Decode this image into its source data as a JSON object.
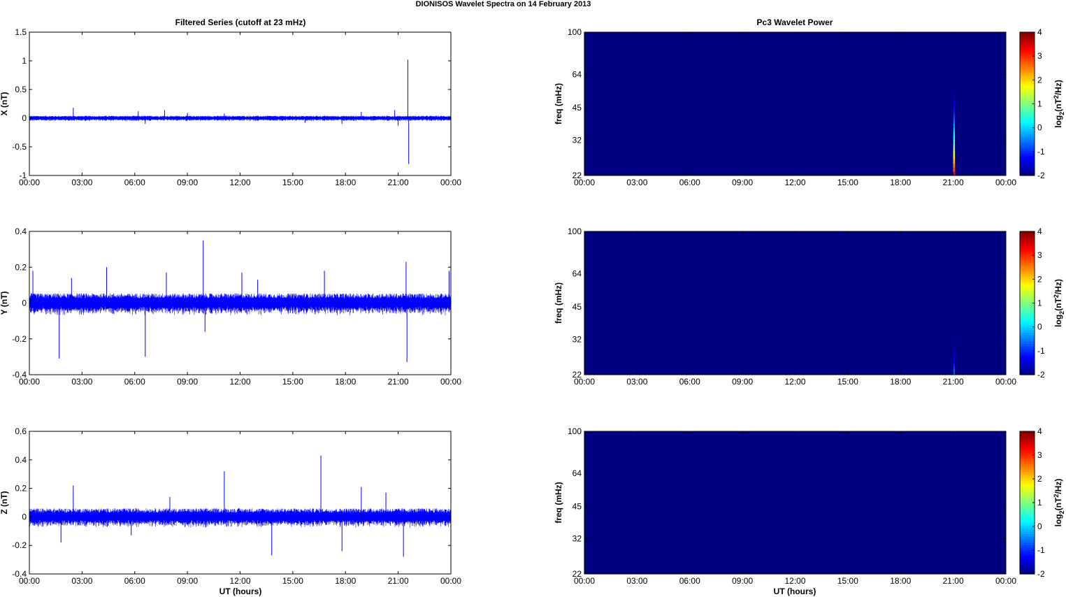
{
  "figure": {
    "title": "DIONISOS Wavelet Spectra on 14 February  2013",
    "left_title": "Filtered Series (cutoff at 23 mHz)",
    "right_title": "Pc3 Wavelet Power",
    "xlabel": "UT (hours)"
  },
  "colormap": "jet",
  "chart_data": [
    {
      "type": "line",
      "panel": "X",
      "ylabel": "X (nT)",
      "ylim": [
        -1,
        1.5
      ],
      "yticks": [
        "-1",
        "-0.5",
        "0",
        "0.5",
        "1",
        "1.5"
      ],
      "xticks": [
        "00:00",
        "03:00",
        "06:00",
        "09:00",
        "12:00",
        "15:00",
        "18:00",
        "21:00",
        "00:00"
      ],
      "xlim_hours": [
        0,
        24
      ],
      "line_color": "#0000ff",
      "noise_band": 0.035,
      "spikes": [
        {
          "t": 2.5,
          "v": 0.18
        },
        {
          "t": 6.2,
          "v": 0.12
        },
        {
          "t": 6.6,
          "v": -0.1
        },
        {
          "t": 7.7,
          "v": 0.14
        },
        {
          "t": 9.0,
          "v": 0.09
        },
        {
          "t": 11.1,
          "v": 0.08
        },
        {
          "t": 15.7,
          "v": -0.08
        },
        {
          "t": 17.8,
          "v": -0.1
        },
        {
          "t": 18.9,
          "v": 0.11
        },
        {
          "t": 20.8,
          "v": 0.14
        },
        {
          "t": 21.0,
          "v": -0.13
        },
        {
          "t": 21.55,
          "v": 1.02
        },
        {
          "t": 21.6,
          "v": -0.8
        }
      ]
    },
    {
      "type": "line",
      "panel": "Y",
      "ylabel": "Y (nT)",
      "ylim": [
        -0.4,
        0.4
      ],
      "yticks": [
        "-0.4",
        "-0.2",
        "0",
        "0.2",
        "0.4"
      ],
      "xticks": [
        "00:00",
        "03:00",
        "06:00",
        "09:00",
        "12:00",
        "15:00",
        "18:00",
        "21:00",
        "00:00"
      ],
      "xlim_hours": [
        0,
        24
      ],
      "line_color": "#0000ff",
      "noise_band": 0.045,
      "spikes": [
        {
          "t": 0.2,
          "v": 0.18
        },
        {
          "t": 1.7,
          "v": -0.31
        },
        {
          "t": 2.4,
          "v": 0.14
        },
        {
          "t": 4.4,
          "v": 0.2
        },
        {
          "t": 6.6,
          "v": -0.3
        },
        {
          "t": 7.8,
          "v": 0.17
        },
        {
          "t": 9.9,
          "v": 0.35
        },
        {
          "t": 10.0,
          "v": -0.16
        },
        {
          "t": 12.1,
          "v": 0.17
        },
        {
          "t": 13.0,
          "v": 0.13
        },
        {
          "t": 16.8,
          "v": 0.18
        },
        {
          "t": 21.45,
          "v": 0.23
        },
        {
          "t": 21.5,
          "v": -0.33
        },
        {
          "t": 23.9,
          "v": 0.18
        }
      ]
    },
    {
      "type": "line",
      "panel": "Z",
      "ylabel": "Z (nT)",
      "ylim": [
        -0.4,
        0.6
      ],
      "yticks": [
        "-0.4",
        "-0.2",
        "0",
        "0.2",
        "0.4",
        "0.6"
      ],
      "xticks": [
        "00:00",
        "03:00",
        "06:00",
        "09:00",
        "12:00",
        "15:00",
        "18:00",
        "21:00",
        "00:00"
      ],
      "xlim_hours": [
        0,
        24
      ],
      "line_color": "#0000ff",
      "noise_band": 0.05,
      "spikes": [
        {
          "t": 1.8,
          "v": -0.18
        },
        {
          "t": 2.5,
          "v": 0.22
        },
        {
          "t": 11.1,
          "v": 0.32
        },
        {
          "t": 13.8,
          "v": -0.27
        },
        {
          "t": 16.6,
          "v": 0.43
        },
        {
          "t": 17.8,
          "v": -0.24
        },
        {
          "t": 18.9,
          "v": 0.21
        },
        {
          "t": 20.3,
          "v": 0.17
        },
        {
          "t": 21.3,
          "v": -0.28
        },
        {
          "t": 8.0,
          "v": 0.14
        },
        {
          "t": 5.8,
          "v": -0.13
        }
      ]
    },
    {
      "type": "heatmap",
      "panel": "X-power",
      "ylabel": "freq (mHz)",
      "yticks": [
        "22",
        "32",
        "45",
        "64",
        "100"
      ],
      "ylim_mHz": [
        22,
        100
      ],
      "yscale": "log",
      "xticks": [
        "00:00",
        "03:00",
        "06:00",
        "09:00",
        "12:00",
        "15:00",
        "18:00",
        "21:00",
        "00:00"
      ],
      "xlim_hours": [
        0,
        24
      ],
      "background_level": -2,
      "colorbar_label": "log2(nT^2/Hz)",
      "colorbar_ticks": [
        "-2",
        "-1",
        "0",
        "1",
        "2",
        "3",
        "4"
      ],
      "clim": [
        -2,
        4
      ],
      "features": [
        {
          "t": 21.05,
          "f_top": 60,
          "level_peak": 3.5,
          "width_hours": 0.12
        }
      ]
    },
    {
      "type": "heatmap",
      "panel": "Y-power",
      "ylabel": "freq (mHz)",
      "yticks": [
        "22",
        "32",
        "45",
        "64",
        "100"
      ],
      "ylim_mHz": [
        22,
        100
      ],
      "yscale": "log",
      "xticks": [
        "00:00",
        "03:00",
        "06:00",
        "09:00",
        "12:00",
        "15:00",
        "18:00",
        "21:00",
        "00:00"
      ],
      "xlim_hours": [
        0,
        24
      ],
      "background_level": -2,
      "colorbar_label": "log2(nT^2/Hz)",
      "colorbar_ticks": [
        "-2",
        "-1",
        "0",
        "1",
        "2",
        "3",
        "4"
      ],
      "clim": [
        -2,
        4
      ],
      "features": [
        {
          "t": 21.05,
          "f_top": 33,
          "level_peak": -0.5,
          "width_hours": 0.1
        }
      ]
    },
    {
      "type": "heatmap",
      "panel": "Z-power",
      "ylabel": "freq (mHz)",
      "yticks": [
        "22",
        "32",
        "45",
        "64",
        "100"
      ],
      "ylim_mHz": [
        22,
        100
      ],
      "yscale": "log",
      "xticks": [
        "00:00",
        "03:00",
        "06:00",
        "09:00",
        "12:00",
        "15:00",
        "18:00",
        "21:00",
        "00:00"
      ],
      "xlim_hours": [
        0,
        24
      ],
      "background_level": -2,
      "colorbar_label": "log2(nT^2/Hz)",
      "colorbar_ticks": [
        "-2",
        "-1",
        "0",
        "1",
        "2",
        "3",
        "4"
      ],
      "clim": [
        -2,
        4
      ],
      "features": []
    }
  ]
}
